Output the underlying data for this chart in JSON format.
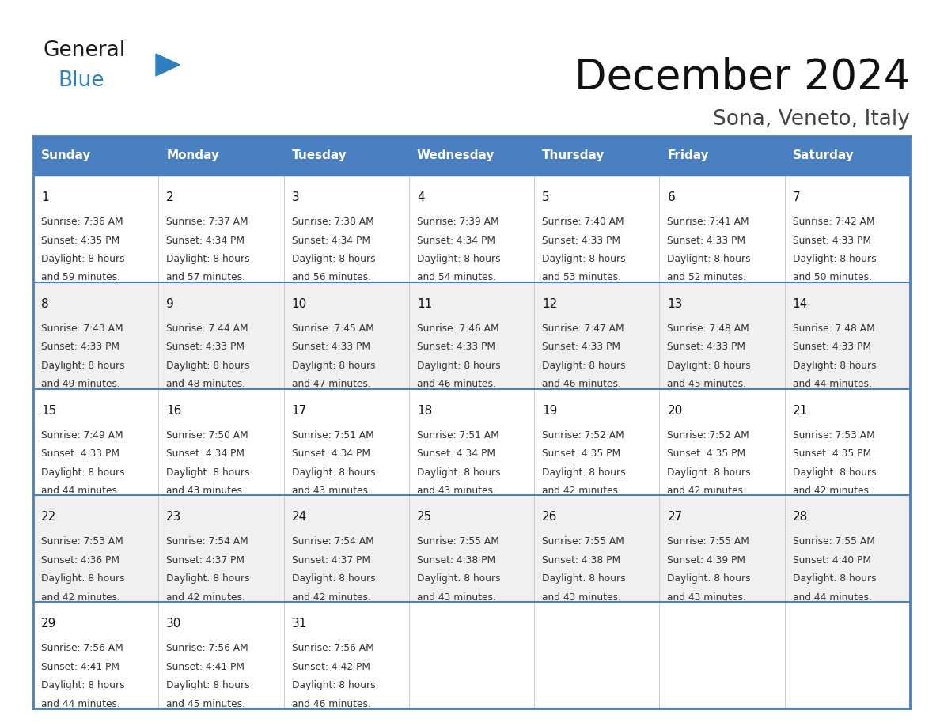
{
  "title": "December 2024",
  "subtitle": "Sona, Veneto, Italy",
  "header_color": "#4a7fc1",
  "header_text_color": "#FFFFFF",
  "days_of_week": [
    "Sunday",
    "Monday",
    "Tuesday",
    "Wednesday",
    "Thursday",
    "Friday",
    "Saturday"
  ],
  "background_color": "#FFFFFF",
  "cell_bg_even": "#FFFFFF",
  "cell_bg_odd": "#f0f0f0",
  "border_color": "#4a7fc1",
  "grid_line_color": "#b0b8cc",
  "text_color": "#333333",
  "day_num_color": "#111111",
  "calendar_data": [
    [
      {
        "day": 1,
        "sunrise": "7:36 AM",
        "sunset": "4:35 PM",
        "daylight": "8 hours\nand 59 minutes."
      },
      {
        "day": 2,
        "sunrise": "7:37 AM",
        "sunset": "4:34 PM",
        "daylight": "8 hours\nand 57 minutes."
      },
      {
        "day": 3,
        "sunrise": "7:38 AM",
        "sunset": "4:34 PM",
        "daylight": "8 hours\nand 56 minutes."
      },
      {
        "day": 4,
        "sunrise": "7:39 AM",
        "sunset": "4:34 PM",
        "daylight": "8 hours\nand 54 minutes."
      },
      {
        "day": 5,
        "sunrise": "7:40 AM",
        "sunset": "4:33 PM",
        "daylight": "8 hours\nand 53 minutes."
      },
      {
        "day": 6,
        "sunrise": "7:41 AM",
        "sunset": "4:33 PM",
        "daylight": "8 hours\nand 52 minutes."
      },
      {
        "day": 7,
        "sunrise": "7:42 AM",
        "sunset": "4:33 PM",
        "daylight": "8 hours\nand 50 minutes."
      }
    ],
    [
      {
        "day": 8,
        "sunrise": "7:43 AM",
        "sunset": "4:33 PM",
        "daylight": "8 hours\nand 49 minutes."
      },
      {
        "day": 9,
        "sunrise": "7:44 AM",
        "sunset": "4:33 PM",
        "daylight": "8 hours\nand 48 minutes."
      },
      {
        "day": 10,
        "sunrise": "7:45 AM",
        "sunset": "4:33 PM",
        "daylight": "8 hours\nand 47 minutes."
      },
      {
        "day": 11,
        "sunrise": "7:46 AM",
        "sunset": "4:33 PM",
        "daylight": "8 hours\nand 46 minutes."
      },
      {
        "day": 12,
        "sunrise": "7:47 AM",
        "sunset": "4:33 PM",
        "daylight": "8 hours\nand 46 minutes."
      },
      {
        "day": 13,
        "sunrise": "7:48 AM",
        "sunset": "4:33 PM",
        "daylight": "8 hours\nand 45 minutes."
      },
      {
        "day": 14,
        "sunrise": "7:48 AM",
        "sunset": "4:33 PM",
        "daylight": "8 hours\nand 44 minutes."
      }
    ],
    [
      {
        "day": 15,
        "sunrise": "7:49 AM",
        "sunset": "4:33 PM",
        "daylight": "8 hours\nand 44 minutes."
      },
      {
        "day": 16,
        "sunrise": "7:50 AM",
        "sunset": "4:34 PM",
        "daylight": "8 hours\nand 43 minutes."
      },
      {
        "day": 17,
        "sunrise": "7:51 AM",
        "sunset": "4:34 PM",
        "daylight": "8 hours\nand 43 minutes."
      },
      {
        "day": 18,
        "sunrise": "7:51 AM",
        "sunset": "4:34 PM",
        "daylight": "8 hours\nand 43 minutes."
      },
      {
        "day": 19,
        "sunrise": "7:52 AM",
        "sunset": "4:35 PM",
        "daylight": "8 hours\nand 42 minutes."
      },
      {
        "day": 20,
        "sunrise": "7:52 AM",
        "sunset": "4:35 PM",
        "daylight": "8 hours\nand 42 minutes."
      },
      {
        "day": 21,
        "sunrise": "7:53 AM",
        "sunset": "4:35 PM",
        "daylight": "8 hours\nand 42 minutes."
      }
    ],
    [
      {
        "day": 22,
        "sunrise": "7:53 AM",
        "sunset": "4:36 PM",
        "daylight": "8 hours\nand 42 minutes."
      },
      {
        "day": 23,
        "sunrise": "7:54 AM",
        "sunset": "4:37 PM",
        "daylight": "8 hours\nand 42 minutes."
      },
      {
        "day": 24,
        "sunrise": "7:54 AM",
        "sunset": "4:37 PM",
        "daylight": "8 hours\nand 42 minutes."
      },
      {
        "day": 25,
        "sunrise": "7:55 AM",
        "sunset": "4:38 PM",
        "daylight": "8 hours\nand 43 minutes."
      },
      {
        "day": 26,
        "sunrise": "7:55 AM",
        "sunset": "4:38 PM",
        "daylight": "8 hours\nand 43 minutes."
      },
      {
        "day": 27,
        "sunrise": "7:55 AM",
        "sunset": "4:39 PM",
        "daylight": "8 hours\nand 43 minutes."
      },
      {
        "day": 28,
        "sunrise": "7:55 AM",
        "sunset": "4:40 PM",
        "daylight": "8 hours\nand 44 minutes."
      }
    ],
    [
      {
        "day": 29,
        "sunrise": "7:56 AM",
        "sunset": "4:41 PM",
        "daylight": "8 hours\nand 44 minutes."
      },
      {
        "day": 30,
        "sunrise": "7:56 AM",
        "sunset": "4:41 PM",
        "daylight": "8 hours\nand 45 minutes."
      },
      {
        "day": 31,
        "sunrise": "7:56 AM",
        "sunset": "4:42 PM",
        "daylight": "8 hours\nand 46 minutes."
      },
      null,
      null,
      null,
      null
    ]
  ],
  "logo_color_general": "#1a1a1a",
  "logo_color_blue": "#2e7fc0",
  "logo_triangle_color": "#2e7fc0",
  "title_color": "#111111",
  "subtitle_color": "#444444"
}
